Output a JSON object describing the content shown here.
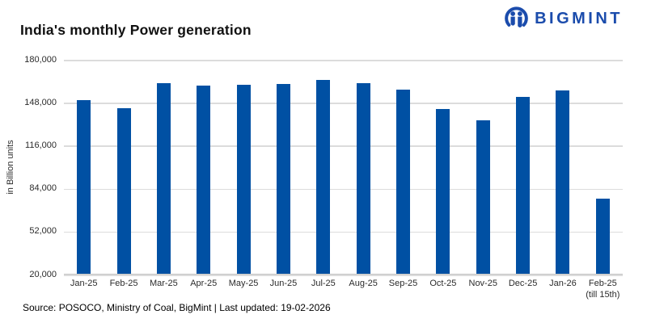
{
  "header": {
    "title": "India's monthly Power generation",
    "brand": "BIGMINT"
  },
  "chart_data": {
    "type": "bar",
    "title": "India's monthly Power generation",
    "xlabel": "",
    "ylabel": "in Billion units",
    "categories": [
      "Jan-25",
      "Feb-25",
      "Mar-25",
      "Apr-25",
      "May-25",
      "Jun-25",
      "Jul-25",
      "Aug-25",
      "Sep-25",
      "Oct-25",
      "Nov-25",
      "Dec-25",
      "Jan-26",
      "Feb-25\n(till 15th)"
    ],
    "values": [
      149500,
      143500,
      162000,
      160000,
      161000,
      161500,
      164500,
      162000,
      157000,
      143000,
      134500,
      151500,
      156500,
      76000
    ],
    "ylim": [
      20000,
      180000
    ],
    "yticks": [
      180000,
      148000,
      116000,
      84000,
      52000,
      20000
    ],
    "grid": true,
    "legend": false
  },
  "footer": {
    "source": "Source: POSOCO, Ministry of Coal, BigMint | Last updated: 19-02-2026"
  },
  "colors": {
    "bar": "#0050A3",
    "brand": "#1B4CAC",
    "gridline": "#DCDCDC",
    "axis_line": "#C6C6C6",
    "text": "#1A1A1A"
  }
}
